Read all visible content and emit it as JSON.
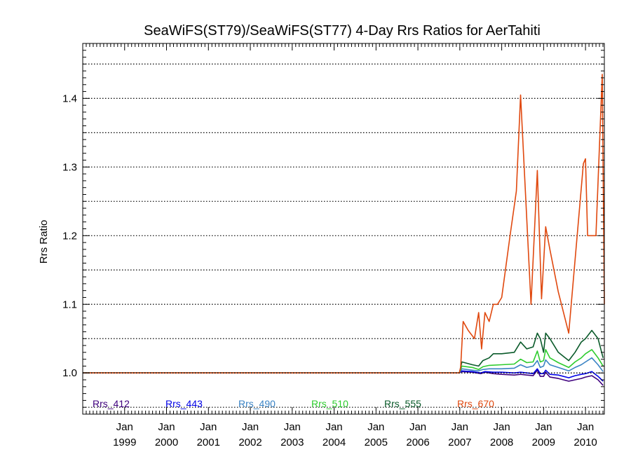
{
  "chart_data": {
    "type": "line",
    "title": "SeaWiFS(ST79)/SeaWiFS(ST77) 4-Day Rrs Ratios for AerTahiti",
    "xlabel": "",
    "ylabel": "Rrs Ratio",
    "x_range": [
      1998.0,
      2010.45
    ],
    "ylim": [
      0.94,
      1.48
    ],
    "y_ticks": [
      1.0,
      1.1,
      1.2,
      1.3,
      1.4
    ],
    "y_tick_labels": [
      "1.0",
      "1.1",
      "1.2",
      "1.3",
      "1.4"
    ],
    "x_ticks": [
      {
        "x": 1999.0,
        "month": "Jan",
        "year": "1999"
      },
      {
        "x": 2000.0,
        "month": "Jan",
        "year": "2000"
      },
      {
        "x": 2001.0,
        "month": "Jan",
        "year": "2001"
      },
      {
        "x": 2002.0,
        "month": "Jan",
        "year": "2002"
      },
      {
        "x": 2003.0,
        "month": "Jan",
        "year": "2003"
      },
      {
        "x": 2004.0,
        "month": "Jan",
        "year": "2004"
      },
      {
        "x": 2005.0,
        "month": "Jan",
        "year": "2005"
      },
      {
        "x": 2006.0,
        "month": "Jan",
        "year": "2006"
      },
      {
        "x": 2007.0,
        "month": "Jan",
        "year": "2007"
      },
      {
        "x": 2008.0,
        "month": "Jan",
        "year": "2008"
      },
      {
        "x": 2009.0,
        "month": "Jan",
        "year": "2009"
      },
      {
        "x": 2010.0,
        "month": "Jan",
        "year": "2010"
      }
    ],
    "grid": "horizontal dotted",
    "legend_position": "bottom",
    "series": [
      {
        "name": "Rrs_412",
        "color": "#3f007d",
        "points": [
          [
            1998.0,
            1.0
          ],
          [
            2006.99,
            1.0
          ],
          [
            2007.05,
            1.002
          ],
          [
            2007.3,
            1.001
          ],
          [
            2007.5,
            0.999
          ],
          [
            2007.6,
            1.001
          ],
          [
            2007.8,
            0.999
          ],
          [
            2008.0,
            0.998
          ],
          [
            2008.3,
            0.997
          ],
          [
            2008.45,
            0.998
          ],
          [
            2008.6,
            0.997
          ],
          [
            2008.75,
            0.996
          ],
          [
            2008.85,
            1.004
          ],
          [
            2008.92,
            0.995
          ],
          [
            2009.0,
            0.995
          ],
          [
            2009.05,
            1.001
          ],
          [
            2009.15,
            0.994
          ],
          [
            2009.35,
            0.992
          ],
          [
            2009.6,
            0.988
          ],
          [
            2009.75,
            0.99
          ],
          [
            2009.9,
            0.992
          ],
          [
            2010.0,
            0.994
          ],
          [
            2010.15,
            0.996
          ],
          [
            2010.3,
            0.99
          ],
          [
            2010.42,
            0.982
          ]
        ]
      },
      {
        "name": "Rrs_443",
        "color": "#0000e6",
        "points": [
          [
            1998.0,
            1.0
          ],
          [
            2006.99,
            1.0
          ],
          [
            2007.05,
            1.003
          ],
          [
            2007.3,
            1.002
          ],
          [
            2007.5,
            1.0
          ],
          [
            2007.6,
            1.002
          ],
          [
            2007.8,
            1.001
          ],
          [
            2008.0,
            1.001
          ],
          [
            2008.3,
            1.0
          ],
          [
            2008.45,
            1.001
          ],
          [
            2008.6,
            1.0
          ],
          [
            2008.75,
            0.999
          ],
          [
            2008.85,
            1.006
          ],
          [
            2008.92,
            0.999
          ],
          [
            2009.0,
            0.999
          ],
          [
            2009.05,
            1.004
          ],
          [
            2009.15,
            0.998
          ],
          [
            2009.35,
            0.997
          ],
          [
            2009.6,
            0.993
          ],
          [
            2009.75,
            0.996
          ],
          [
            2009.9,
            0.998
          ],
          [
            2010.0,
            0.999
          ],
          [
            2010.15,
            1.002
          ],
          [
            2010.3,
            0.995
          ],
          [
            2010.42,
            0.988
          ]
        ]
      },
      {
        "name": "Rrs_490",
        "color": "#3a83c4",
        "points": [
          [
            1998.0,
            1.0
          ],
          [
            2006.99,
            1.0
          ],
          [
            2007.05,
            1.006
          ],
          [
            2007.3,
            1.004
          ],
          [
            2007.45,
            1.003
          ],
          [
            2007.55,
            1.005
          ],
          [
            2007.7,
            1.006
          ],
          [
            2008.0,
            1.006
          ],
          [
            2008.3,
            1.007
          ],
          [
            2008.45,
            1.012
          ],
          [
            2008.6,
            1.008
          ],
          [
            2008.75,
            1.01
          ],
          [
            2008.85,
            1.018
          ],
          [
            2008.92,
            1.008
          ],
          [
            2009.0,
            1.01
          ],
          [
            2009.05,
            1.019
          ],
          [
            2009.15,
            1.012
          ],
          [
            2009.35,
            1.008
          ],
          [
            2009.6,
            1.003
          ],
          [
            2009.75,
            1.008
          ],
          [
            2009.9,
            1.012
          ],
          [
            2010.0,
            1.016
          ],
          [
            2010.15,
            1.022
          ],
          [
            2010.3,
            1.012
          ],
          [
            2010.42,
            1.002
          ]
        ]
      },
      {
        "name": "Rrs_510",
        "color": "#2ecc2e",
        "points": [
          [
            1998.0,
            1.0
          ],
          [
            2006.99,
            1.0
          ],
          [
            2007.05,
            1.01
          ],
          [
            2007.3,
            1.008
          ],
          [
            2007.45,
            1.005
          ],
          [
            2007.55,
            1.009
          ],
          [
            2007.7,
            1.011
          ],
          [
            2008.0,
            1.012
          ],
          [
            2008.3,
            1.013
          ],
          [
            2008.45,
            1.02
          ],
          [
            2008.6,
            1.015
          ],
          [
            2008.75,
            1.016
          ],
          [
            2008.85,
            1.032
          ],
          [
            2008.92,
            1.016
          ],
          [
            2009.0,
            1.018
          ],
          [
            2009.05,
            1.034
          ],
          [
            2009.15,
            1.022
          ],
          [
            2009.35,
            1.015
          ],
          [
            2009.6,
            1.008
          ],
          [
            2009.75,
            1.016
          ],
          [
            2009.9,
            1.022
          ],
          [
            2010.0,
            1.028
          ],
          [
            2010.15,
            1.034
          ],
          [
            2010.3,
            1.022
          ],
          [
            2010.42,
            1.01
          ]
        ]
      },
      {
        "name": "Rrs_555",
        "color": "#0a5a2a",
        "points": [
          [
            1998.0,
            1.0
          ],
          [
            2006.99,
            1.0
          ],
          [
            2007.05,
            1.016
          ],
          [
            2007.3,
            1.012
          ],
          [
            2007.45,
            1.01
          ],
          [
            2007.55,
            1.018
          ],
          [
            2007.7,
            1.022
          ],
          [
            2007.8,
            1.028
          ],
          [
            2008.0,
            1.028
          ],
          [
            2008.3,
            1.03
          ],
          [
            2008.45,
            1.045
          ],
          [
            2008.6,
            1.035
          ],
          [
            2008.75,
            1.038
          ],
          [
            2008.85,
            1.058
          ],
          [
            2008.92,
            1.05
          ],
          [
            2009.0,
            1.03
          ],
          [
            2009.05,
            1.058
          ],
          [
            2009.15,
            1.05
          ],
          [
            2009.35,
            1.03
          ],
          [
            2009.6,
            1.018
          ],
          [
            2009.75,
            1.03
          ],
          [
            2009.9,
            1.045
          ],
          [
            2010.0,
            1.05
          ],
          [
            2010.15,
            1.062
          ],
          [
            2010.3,
            1.05
          ],
          [
            2010.42,
            1.022
          ]
        ]
      },
      {
        "name": "Rrs_670",
        "color": "#e0480e",
        "points": [
          [
            1998.0,
            1.0
          ],
          [
            2006.99,
            1.0
          ],
          [
            2007.02,
            1.008
          ],
          [
            2007.08,
            1.075
          ],
          [
            2007.2,
            1.062
          ],
          [
            2007.35,
            1.05
          ],
          [
            2007.45,
            1.088
          ],
          [
            2007.52,
            1.035
          ],
          [
            2007.6,
            1.088
          ],
          [
            2007.7,
            1.075
          ],
          [
            2007.8,
            1.1
          ],
          [
            2007.9,
            1.1
          ],
          [
            2008.0,
            1.11
          ],
          [
            2008.2,
            1.2
          ],
          [
            2008.35,
            1.265
          ],
          [
            2008.45,
            1.405
          ],
          [
            2008.7,
            1.1
          ],
          [
            2008.85,
            1.295
          ],
          [
            2008.95,
            1.108
          ],
          [
            2009.05,
            1.213
          ],
          [
            2009.15,
            1.18
          ],
          [
            2009.35,
            1.118
          ],
          [
            2009.6,
            1.058
          ],
          [
            2009.95,
            1.305
          ],
          [
            2010.0,
            1.312
          ],
          [
            2010.05,
            1.2
          ],
          [
            2010.25,
            1.2
          ],
          [
            2010.4,
            1.435
          ],
          [
            2010.45,
            1.1
          ]
        ]
      }
    ]
  }
}
